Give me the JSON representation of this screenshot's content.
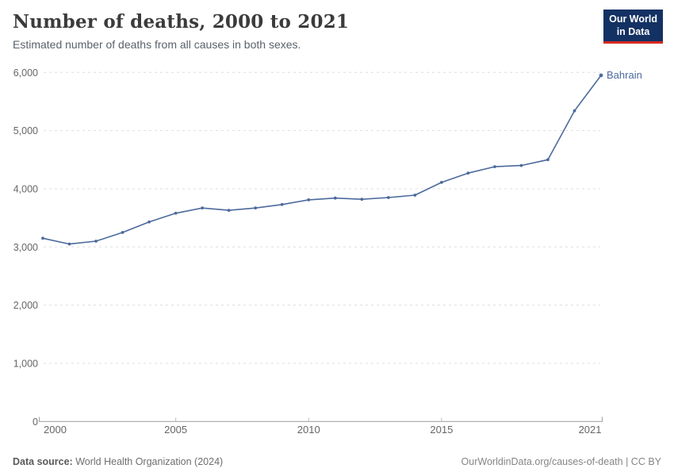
{
  "header": {
    "title": "Number of deaths, 2000 to 2021",
    "subtitle": "Estimated number of deaths from all causes in both sexes.",
    "logo": {
      "line1": "Our World",
      "line2": "in Data"
    }
  },
  "footer": {
    "source_label": "Data source:",
    "source_value": "World Health Organization (2024)",
    "link": "OurWorldinData.org/causes-of-death",
    "separator": " | ",
    "license": "CC BY"
  },
  "colors": {
    "line": "#4c6a9c",
    "series_label": "#4c6a9c",
    "grid": "#dddddd",
    "axis": "#a8a8a8",
    "tick": "#bbbbbb",
    "tick_text": "#666666",
    "logo_bg": "#143163",
    "logo_red": "#d42a20",
    "title": "#3b3b3b",
    "subtitle": "#59626b"
  },
  "chart_data": {
    "type": "line",
    "title": "Number of deaths, 2000 to 2021",
    "subtitle": "Estimated number of deaths from all causes in both sexes.",
    "xlabel": "",
    "ylabel": "",
    "x": [
      2000,
      2001,
      2002,
      2003,
      2004,
      2005,
      2006,
      2007,
      2008,
      2009,
      2010,
      2011,
      2012,
      2013,
      2014,
      2015,
      2016,
      2017,
      2018,
      2019,
      2020,
      2021
    ],
    "series": [
      {
        "name": "Bahrain",
        "color": "#4c6a9c",
        "values": [
          3150,
          3050,
          3100,
          3250,
          3430,
          3580,
          3670,
          3630,
          3670,
          3730,
          3810,
          3840,
          3820,
          3850,
          3890,
          4110,
          4270,
          4380,
          4400,
          4500,
          5340,
          5950
        ]
      }
    ],
    "ylim": [
      0,
      6000
    ],
    "yticks": [
      0,
      1000,
      2000,
      3000,
      4000,
      5000,
      6000
    ],
    "xticks": [
      2000,
      2005,
      2010,
      2015,
      2021
    ],
    "grid": "horizontal-dashed",
    "legend": "end-of-line-label"
  }
}
